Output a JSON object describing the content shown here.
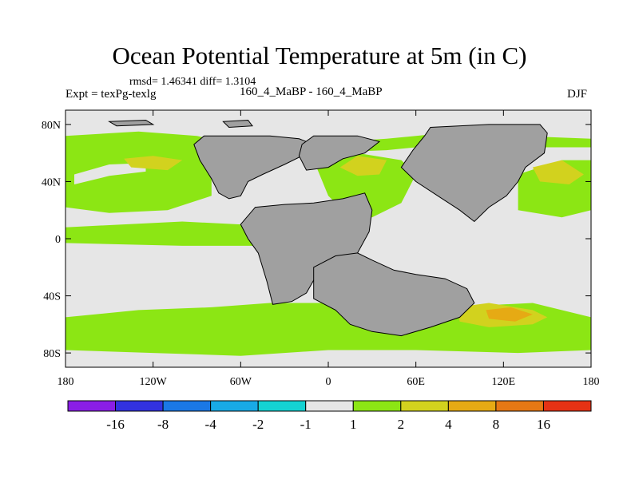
{
  "chart_data": {
    "type": "heatmap",
    "title": "Ocean Potential Temperature at 5m (in C)",
    "stats": "rmsd= 1.46341 diff= 1.3104",
    "left_label": "Expt = texPg-texlg",
    "center_label": "160_4_MaBP - 160_4_MaBP",
    "right_label": "DJF",
    "xlim": [
      -180,
      180
    ],
    "ylim": [
      -90,
      90
    ],
    "x_ticks": [
      {
        "value": -180,
        "label": "180"
      },
      {
        "value": -120,
        "label": "120W"
      },
      {
        "value": -60,
        "label": "60W"
      },
      {
        "value": 0,
        "label": "0"
      },
      {
        "value": 60,
        "label": "60E"
      },
      {
        "value": 120,
        "label": "120E"
      },
      {
        "value": 180,
        "label": "180"
      }
    ],
    "y_ticks": [
      {
        "value": 80,
        "label": "80N"
      },
      {
        "value": 40,
        "label": "40N"
      },
      {
        "value": 0,
        "label": "0"
      },
      {
        "value": -40,
        "label": "40S"
      },
      {
        "value": -80,
        "label": "80S"
      }
    ],
    "colorbar": {
      "colors": [
        "#8a1ee6",
        "#3232e0",
        "#1a78e6",
        "#18aae6",
        "#14d2d2",
        "#e6e6e6",
        "#8ce614",
        "#d2d21e",
        "#e6aa14",
        "#e67814",
        "#e63214"
      ],
      "labels": [
        "-16",
        "-8",
        "-4",
        "-2",
        "-1",
        "1",
        "2",
        "4",
        "8",
        "16"
      ]
    },
    "land_color": "#a0a0a0",
    "regions": [
      {
        "name": "north-pacific-band",
        "class": "2 to 4",
        "color": "#8ce614",
        "polygon": [
          [
            -180,
            70
          ],
          [
            -150,
            70
          ],
          [
            -120,
            68
          ],
          [
            -80,
            60
          ],
          [
            -80,
            30
          ],
          [
            -110,
            20
          ],
          [
            -150,
            18
          ],
          [
            -180,
            22
          ]
        ]
      },
      {
        "name": "north-pacific-cool-streak",
        "class": "-1 to 1",
        "color": "#e6e6e6",
        "polygon": [
          [
            -174,
            45
          ],
          [
            -150,
            52
          ],
          [
            -125,
            53
          ],
          [
            -125,
            47
          ],
          [
            -150,
            44
          ],
          [
            -174,
            38
          ]
        ]
      },
      {
        "name": "north-pacific-warm",
        "class": "4 to 8",
        "color": "#d2d21e",
        "polygon": [
          [
            -140,
            56
          ],
          [
            -120,
            58
          ],
          [
            -100,
            55
          ],
          [
            -110,
            48
          ],
          [
            -135,
            50
          ]
        ]
      },
      {
        "name": "tropical-band",
        "class": "2 to 4",
        "color": "#8ce614",
        "polygon": [
          [
            -180,
            8
          ],
          [
            -100,
            12
          ],
          [
            -60,
            10
          ],
          [
            -40,
            5
          ],
          [
            -40,
            -5
          ],
          [
            -100,
            -5
          ],
          [
            -180,
            -3
          ]
        ]
      },
      {
        "name": "southern-band",
        "class": "2 to 4",
        "color": "#8ce614",
        "polygon": [
          [
            -180,
            -55
          ],
          [
            -130,
            -50
          ],
          [
            -80,
            -48
          ],
          [
            -40,
            -45
          ],
          [
            20,
            -45
          ],
          [
            80,
            -48
          ],
          [
            140,
            -45
          ],
          [
            180,
            -55
          ],
          [
            180,
            -78
          ],
          [
            130,
            -80
          ],
          [
            60,
            -78
          ],
          [
            0,
            -78
          ],
          [
            -60,
            -82
          ],
          [
            -120,
            -80
          ],
          [
            -180,
            -78
          ]
        ]
      },
      {
        "name": "south-indian-warm",
        "class": "4 to 8",
        "color": "#d2d21e",
        "polygon": [
          [
            88,
            -48
          ],
          [
            110,
            -45
          ],
          [
            140,
            -50
          ],
          [
            150,
            -55
          ],
          [
            140,
            -60
          ],
          [
            110,
            -62
          ],
          [
            90,
            -58
          ]
        ]
      },
      {
        "name": "south-indian-hot",
        "class": "8 to 16",
        "color": "#e6aa14",
        "polygon": [
          [
            108,
            -50
          ],
          [
            125,
            -48
          ],
          [
            140,
            -53
          ],
          [
            128,
            -58
          ],
          [
            110,
            -56
          ]
        ]
      },
      {
        "name": "tethys-green",
        "class": "2 to 4",
        "color": "#8ce614",
        "polygon": [
          [
            -10,
            55
          ],
          [
            20,
            60
          ],
          [
            50,
            55
          ],
          [
            60,
            45
          ],
          [
            50,
            25
          ],
          [
            30,
            15
          ],
          [
            10,
            20
          ],
          [
            0,
            30
          ]
        ]
      },
      {
        "name": "tethys-warm",
        "class": "4 to 8",
        "color": "#d2d21e",
        "polygon": [
          [
            8,
            50
          ],
          [
            20,
            58
          ],
          [
            40,
            55
          ],
          [
            35,
            45
          ],
          [
            20,
            44
          ]
        ]
      },
      {
        "name": "pacific-east-green",
        "class": "2 to 4",
        "color": "#8ce614",
        "polygon": [
          [
            130,
            45
          ],
          [
            160,
            55
          ],
          [
            180,
            55
          ],
          [
            180,
            20
          ],
          [
            160,
            15
          ],
          [
            130,
            20
          ]
        ]
      },
      {
        "name": "pacific-east-warm",
        "class": "4 to 8",
        "color": "#d2d21e",
        "polygon": [
          [
            140,
            50
          ],
          [
            160,
            55
          ],
          [
            175,
            45
          ],
          [
            165,
            38
          ],
          [
            145,
            40
          ]
        ]
      },
      {
        "name": "arctic-green",
        "class": "2 to 4",
        "color": "#8ce614",
        "polygon": [
          [
            -180,
            72
          ],
          [
            -130,
            75
          ],
          [
            -90,
            72
          ],
          [
            -60,
            65
          ],
          [
            -40,
            60
          ],
          [
            -30,
            65
          ],
          [
            10,
            68
          ],
          [
            40,
            70
          ],
          [
            80,
            74
          ],
          [
            130,
            72
          ],
          [
            180,
            70
          ],
          [
            180,
            64
          ],
          [
            130,
            64
          ],
          [
            80,
            66
          ],
          [
            40,
            62
          ],
          [
            -60,
            58
          ],
          [
            -120,
            62
          ],
          [
            -180,
            64
          ]
        ]
      }
    ],
    "landmasses": [
      {
        "name": "laurasia-west",
        "polygon": [
          [
            -85,
            72
          ],
          [
            -40,
            72
          ],
          [
            -20,
            70
          ],
          [
            -10,
            66
          ],
          [
            -18,
            58
          ],
          [
            -30,
            52
          ],
          [
            -45,
            45
          ],
          [
            -55,
            40
          ],
          [
            -60,
            30
          ],
          [
            -68,
            28
          ],
          [
            -75,
            32
          ],
          [
            -80,
            42
          ],
          [
            -88,
            55
          ],
          [
            -92,
            66
          ]
        ]
      },
      {
        "name": "europe-block",
        "polygon": [
          [
            -10,
            72
          ],
          [
            20,
            72
          ],
          [
            35,
            68
          ],
          [
            25,
            60
          ],
          [
            10,
            56
          ],
          [
            0,
            50
          ],
          [
            -15,
            48
          ],
          [
            -20,
            58
          ],
          [
            -18,
            66
          ]
        ]
      },
      {
        "name": "asia-block",
        "polygon": [
          [
            70,
            78
          ],
          [
            110,
            80
          ],
          [
            145,
            80
          ],
          [
            150,
            74
          ],
          [
            148,
            60
          ],
          [
            135,
            50
          ],
          [
            130,
            40
          ],
          [
            122,
            30
          ],
          [
            110,
            22
          ],
          [
            100,
            12
          ],
          [
            90,
            20
          ],
          [
            78,
            28
          ],
          [
            60,
            40
          ],
          [
            50,
            50
          ],
          [
            58,
            62
          ],
          [
            66,
            72
          ]
        ]
      },
      {
        "name": "gondwana-america",
        "polygon": [
          [
            -50,
            22
          ],
          [
            -30,
            24
          ],
          [
            -10,
            25
          ],
          [
            10,
            28
          ],
          [
            25,
            32
          ],
          [
            30,
            20
          ],
          [
            28,
            5
          ],
          [
            20,
            -10
          ],
          [
            10,
            -15
          ],
          [
            -5,
            -20
          ],
          [
            -15,
            -38
          ],
          [
            -25,
            -44
          ],
          [
            -38,
            -46
          ],
          [
            -42,
            -30
          ],
          [
            -48,
            -10
          ],
          [
            -55,
            0
          ],
          [
            -60,
            10
          ]
        ]
      },
      {
        "name": "africa-antarctica",
        "polygon": [
          [
            -10,
            -20
          ],
          [
            5,
            -12
          ],
          [
            20,
            -10
          ],
          [
            30,
            -15
          ],
          [
            45,
            -22
          ],
          [
            60,
            -25
          ],
          [
            80,
            -28
          ],
          [
            95,
            -35
          ],
          [
            100,
            -45
          ],
          [
            90,
            -55
          ],
          [
            70,
            -62
          ],
          [
            50,
            -68
          ],
          [
            30,
            -65
          ],
          [
            15,
            -60
          ],
          [
            5,
            -50
          ],
          [
            -10,
            -42
          ]
        ]
      },
      {
        "name": "arctic-island-1",
        "polygon": [
          [
            -150,
            82
          ],
          [
            -125,
            83
          ],
          [
            -120,
            80
          ],
          [
            -145,
            79
          ]
        ]
      },
      {
        "name": "arctic-island-2",
        "polygon": [
          [
            -72,
            82
          ],
          [
            -55,
            83
          ],
          [
            -52,
            79
          ],
          [
            -68,
            78
          ]
        ]
      }
    ]
  }
}
